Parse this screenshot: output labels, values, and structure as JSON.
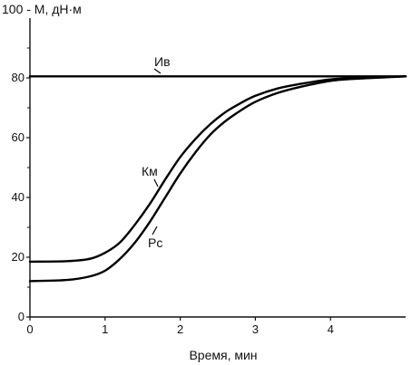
{
  "chart_data": {
    "type": "line",
    "title": "",
    "ylabel": "100 - M, дН·м",
    "xlabel": "Время, мин",
    "xlim": [
      0,
      5
    ],
    "ylim": [
      0,
      100
    ],
    "x_ticks": [
      0,
      1,
      2,
      3,
      4
    ],
    "y_ticks": [
      0,
      20,
      40,
      60,
      80
    ],
    "y_minor_ticks": [
      10,
      30,
      50,
      70,
      90
    ],
    "grid": false,
    "legend": "none",
    "series": [
      {
        "name": "Ив",
        "x": [
          0,
          1,
          2,
          3,
          4,
          5
        ],
        "y": [
          80.5,
          80.5,
          80.5,
          80.5,
          80.5,
          80.5
        ]
      },
      {
        "name": "Км",
        "x": [
          0,
          0.5,
          0.8,
          1.0,
          1.2,
          1.4,
          1.6,
          1.8,
          2.0,
          2.2,
          2.4,
          2.6,
          2.8,
          3.0,
          3.3,
          3.6,
          4.0,
          4.4,
          5.0
        ],
        "y": [
          18.5,
          18.7,
          19.5,
          21.5,
          25,
          31,
          38,
          46,
          53.5,
          59.5,
          64.5,
          68.5,
          71.5,
          74,
          76.5,
          78,
          79.5,
          80,
          80.5
        ]
      },
      {
        "name": "Рс",
        "x": [
          0,
          0.5,
          0.8,
          1.0,
          1.2,
          1.4,
          1.6,
          1.8,
          2.0,
          2.2,
          2.4,
          2.6,
          2.8,
          3.0,
          3.3,
          3.6,
          4.0,
          4.4,
          5.0
        ],
        "y": [
          12,
          12.4,
          13.6,
          15.5,
          19.5,
          25,
          32,
          40,
          48,
          55,
          61,
          65.5,
          69,
          72,
          75,
          77,
          79,
          79.8,
          80.5
        ]
      }
    ],
    "annotations": [
      {
        "text": "Ив",
        "series": "Ив"
      },
      {
        "text": "Км",
        "series": "Км"
      },
      {
        "text": "Рс",
        "series": "Рс"
      }
    ]
  }
}
